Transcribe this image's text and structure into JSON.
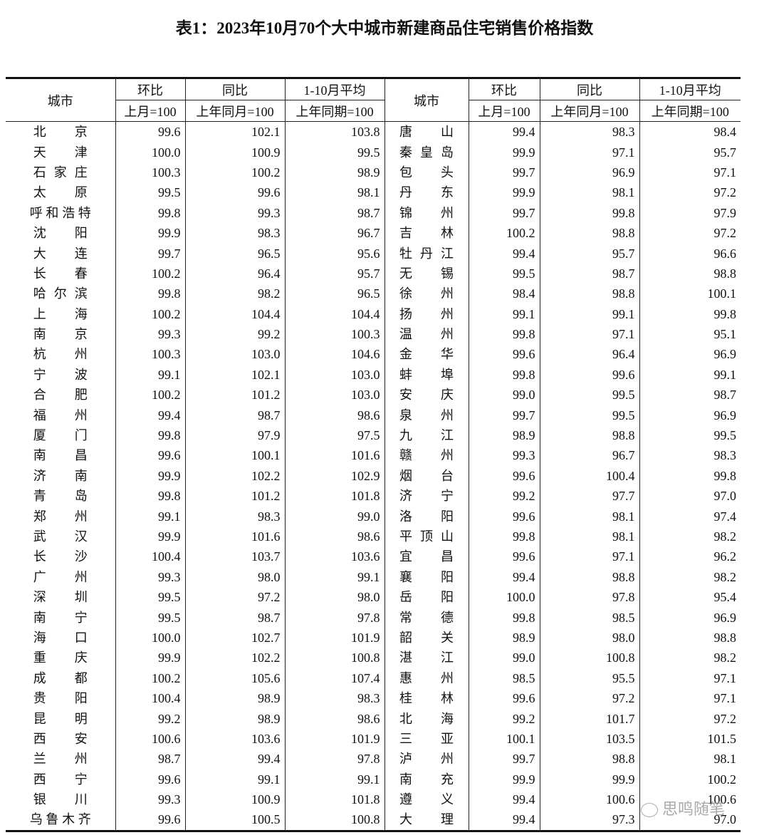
{
  "title": "表1：2023年10月70个大中城市新建商品住宅销售价格指数",
  "headers": {
    "city": "城市",
    "mom": "环比",
    "yoy": "同比",
    "avg": "1-10月平均",
    "mom_base": "上月=100",
    "yoy_base": "上年同月=100",
    "avg_base": "上年同期=100"
  },
  "rows": [
    [
      [
        "北京",
        "99.6",
        "102.1",
        "103.8"
      ],
      [
        "唐山",
        "99.4",
        "98.3",
        "98.4"
      ]
    ],
    [
      [
        "天津",
        "100.0",
        "100.9",
        "99.5"
      ],
      [
        "秦皇岛",
        "99.9",
        "97.1",
        "95.7"
      ]
    ],
    [
      [
        "石家庄",
        "100.3",
        "100.2",
        "98.9"
      ],
      [
        "包头",
        "99.7",
        "96.9",
        "97.1"
      ]
    ],
    [
      [
        "太原",
        "99.5",
        "99.6",
        "98.1"
      ],
      [
        "丹东",
        "99.9",
        "98.1",
        "97.2"
      ]
    ],
    [
      [
        "呼和浩特",
        "99.8",
        "99.3",
        "98.7"
      ],
      [
        "锦州",
        "99.7",
        "99.8",
        "97.9"
      ]
    ],
    [
      [
        "沈阳",
        "99.9",
        "98.3",
        "96.7"
      ],
      [
        "吉林",
        "100.2",
        "98.8",
        "97.2"
      ]
    ],
    [
      [
        "大连",
        "99.7",
        "96.5",
        "95.6"
      ],
      [
        "牡丹江",
        "99.4",
        "95.7",
        "96.6"
      ]
    ],
    [
      [
        "长春",
        "100.2",
        "96.4",
        "95.7"
      ],
      [
        "无锡",
        "99.5",
        "98.7",
        "98.8"
      ]
    ],
    [
      [
        "哈尔滨",
        "99.8",
        "98.2",
        "96.5"
      ],
      [
        "徐州",
        "98.4",
        "98.8",
        "100.1"
      ]
    ],
    [
      [
        "上海",
        "100.2",
        "104.4",
        "104.4"
      ],
      [
        "扬州",
        "99.1",
        "99.1",
        "99.8"
      ]
    ],
    [
      [
        "南京",
        "99.3",
        "99.2",
        "100.3"
      ],
      [
        "温州",
        "99.8",
        "97.1",
        "95.1"
      ]
    ],
    [
      [
        "杭州",
        "100.3",
        "103.0",
        "104.6"
      ],
      [
        "金华",
        "99.6",
        "96.4",
        "96.9"
      ]
    ],
    [
      [
        "宁波",
        "99.1",
        "102.1",
        "103.0"
      ],
      [
        "蚌埠",
        "99.8",
        "99.6",
        "99.1"
      ]
    ],
    [
      [
        "合肥",
        "100.2",
        "101.2",
        "103.0"
      ],
      [
        "安庆",
        "99.0",
        "99.5",
        "98.7"
      ]
    ],
    [
      [
        "福州",
        "99.4",
        "98.7",
        "98.6"
      ],
      [
        "泉州",
        "99.7",
        "99.5",
        "96.9"
      ]
    ],
    [
      [
        "厦门",
        "99.8",
        "97.9",
        "97.5"
      ],
      [
        "九江",
        "98.9",
        "98.8",
        "99.5"
      ]
    ],
    [
      [
        "南昌",
        "99.6",
        "100.1",
        "101.6"
      ],
      [
        "赣州",
        "99.3",
        "96.7",
        "98.3"
      ]
    ],
    [
      [
        "济南",
        "99.9",
        "102.2",
        "102.9"
      ],
      [
        "烟台",
        "99.6",
        "100.4",
        "99.8"
      ]
    ],
    [
      [
        "青岛",
        "99.8",
        "101.2",
        "101.8"
      ],
      [
        "济宁",
        "99.2",
        "97.7",
        "97.0"
      ]
    ],
    [
      [
        "郑州",
        "99.1",
        "98.3",
        "99.0"
      ],
      [
        "洛阳",
        "99.6",
        "98.1",
        "97.4"
      ]
    ],
    [
      [
        "武汉",
        "99.9",
        "101.6",
        "98.6"
      ],
      [
        "平顶山",
        "99.8",
        "98.1",
        "98.2"
      ]
    ],
    [
      [
        "长沙",
        "100.4",
        "103.7",
        "103.6"
      ],
      [
        "宜昌",
        "99.6",
        "97.1",
        "96.2"
      ]
    ],
    [
      [
        "广州",
        "99.3",
        "98.0",
        "99.1"
      ],
      [
        "襄阳",
        "99.4",
        "98.8",
        "98.2"
      ]
    ],
    [
      [
        "深圳",
        "99.5",
        "97.2",
        "98.0"
      ],
      [
        "岳阳",
        "100.0",
        "97.8",
        "95.4"
      ]
    ],
    [
      [
        "南宁",
        "99.5",
        "98.7",
        "97.8"
      ],
      [
        "常德",
        "99.8",
        "98.5",
        "96.9"
      ]
    ],
    [
      [
        "海口",
        "100.0",
        "102.7",
        "101.9"
      ],
      [
        "韶关",
        "98.9",
        "98.0",
        "98.8"
      ]
    ],
    [
      [
        "重庆",
        "99.9",
        "102.2",
        "100.8"
      ],
      [
        "湛江",
        "99.0",
        "100.8",
        "98.2"
      ]
    ],
    [
      [
        "成都",
        "100.2",
        "105.6",
        "107.4"
      ],
      [
        "惠州",
        "98.5",
        "95.5",
        "97.1"
      ]
    ],
    [
      [
        "贵阳",
        "100.4",
        "98.9",
        "98.3"
      ],
      [
        "桂林",
        "99.6",
        "97.2",
        "97.1"
      ]
    ],
    [
      [
        "昆明",
        "99.2",
        "98.9",
        "98.6"
      ],
      [
        "北海",
        "99.2",
        "101.7",
        "97.2"
      ]
    ],
    [
      [
        "西安",
        "100.6",
        "103.6",
        "101.9"
      ],
      [
        "三亚",
        "100.1",
        "103.5",
        "101.5"
      ]
    ],
    [
      [
        "兰州",
        "98.7",
        "99.4",
        "97.8"
      ],
      [
        "泸州",
        "99.7",
        "98.8",
        "98.1"
      ]
    ],
    [
      [
        "西宁",
        "99.6",
        "99.1",
        "99.1"
      ],
      [
        "南充",
        "99.9",
        "99.9",
        "100.2"
      ]
    ],
    [
      [
        "银川",
        "99.3",
        "100.9",
        "101.8"
      ],
      [
        "遵义",
        "99.4",
        "100.6",
        "100.6"
      ]
    ],
    [
      [
        "乌鲁木齐",
        "99.6",
        "100.5",
        "100.8"
      ],
      [
        "大理",
        "99.4",
        "97.3",
        "97.0"
      ]
    ]
  ],
  "watermark": "思鸣随笔"
}
